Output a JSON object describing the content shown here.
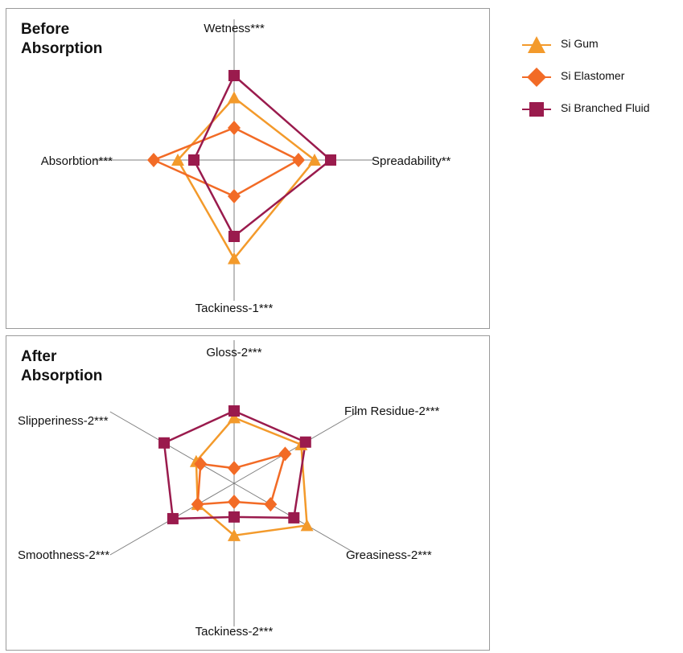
{
  "chart_data": [
    {
      "type": "radar",
      "title": "Before\nAbsorption",
      "axes": [
        "Wetness***",
        "Spreadability**",
        "Tackiness-1***",
        "Absorbtion***"
      ],
      "series": [
        {
          "name": "Si Gum",
          "values": [
            3.1,
            4.0,
            4.9,
            2.8
          ],
          "color": "#f39a2b",
          "marker": "triangle"
        },
        {
          "name": "Si Elastomer",
          "values": [
            1.6,
            3.2,
            1.8,
            4.0
          ],
          "color": "#f26b26",
          "marker": "diamond"
        },
        {
          "name": "Si Branched Fluid",
          "values": [
            4.2,
            4.8,
            3.8,
            2.0
          ],
          "color": "#9a1b4d",
          "marker": "square"
        }
      ],
      "rlim": [
        0,
        4.8
      ],
      "legend_position": "right"
    },
    {
      "type": "radar",
      "title": "After\nAbsorption",
      "axes": [
        "Gloss-2***",
        "Film Residue-2***",
        "Greasiness-2***",
        "Tackiness-2***",
        "Smoothness-2***",
        "Slipperiness-2***"
      ],
      "series": [
        {
          "name": "Si Gum",
          "values": [
            3.9,
            4.6,
            5.0,
            3.1,
            2.5,
            2.6
          ],
          "color": "#f39a2b",
          "marker": "triangle"
        },
        {
          "name": "Si Elastomer",
          "values": [
            0.9,
            3.5,
            2.5,
            1.1,
            2.5,
            2.3
          ],
          "color": "#f26b26",
          "marker": "diamond"
        },
        {
          "name": "Si Branched Fluid",
          "values": [
            4.3,
            4.9,
            4.1,
            2.0,
            4.2,
            4.8
          ],
          "color": "#9a1b4d",
          "marker": "square"
        }
      ],
      "rlim": [
        0,
        5.4
      ],
      "legend_position": "right"
    }
  ],
  "panels": {
    "before_title_1": "Before",
    "before_title_2": "Absorption",
    "after_title_1": "After",
    "after_title_2": "Absorption"
  },
  "legend": [
    {
      "label": "Si Gum",
      "color": "#f39a2b",
      "marker": "triangle"
    },
    {
      "label": "Si Elastomer",
      "color": "#f26b26",
      "marker": "diamond"
    },
    {
      "label": "Si Branched Fluid",
      "color": "#9a1b4d",
      "marker": "square"
    }
  ]
}
